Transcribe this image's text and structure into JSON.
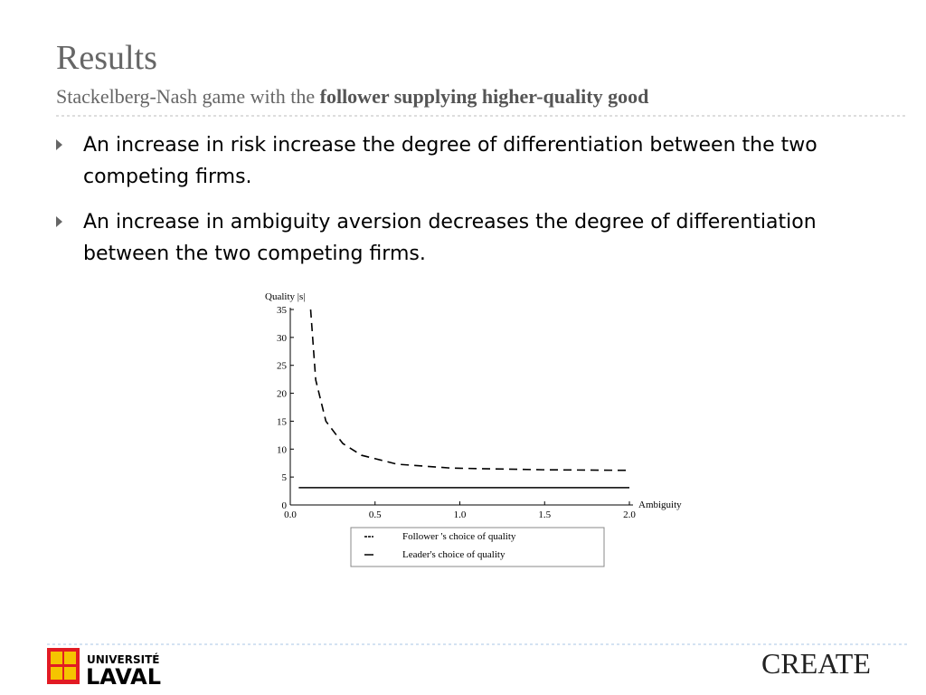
{
  "slide": {
    "title": "Results",
    "subtitle": "Stackelberg-Nash game with the",
    "subtitle_emphasis": "follower supplying higher-quality good",
    "bullets": [
      "An increase in risk increase the degree of differentiation between the two competing firms.",
      "An increase in ambiguity aversion decreases the degree of differentiation between the two competing firms."
    ],
    "logo_left_top": "UNIVERSITÉ",
    "logo_left_bottom": "LAVAL",
    "logo_right": "CREATE"
  },
  "chart_data": {
    "type": "line",
    "x_label": "Ambiguity",
    "y_label": "Quality |s|",
    "xlim": [
      0,
      2
    ],
    "ylim": [
      0,
      35
    ],
    "xticks": [
      {
        "value": 0,
        "label": "0.0"
      },
      {
        "value": 0.5,
        "label": "0.5"
      },
      {
        "value": 1,
        "label": "1.0"
      },
      {
        "value": 1.5,
        "label": "1.5"
      },
      {
        "value": 2,
        "label": "2.0"
      }
    ],
    "yticks": [
      0,
      5,
      10,
      15,
      20,
      25,
      30,
      35
    ],
    "grid": false,
    "legend": "bottom",
    "series": [
      {
        "name": "Follower 's choice of quality",
        "color": "#000000",
        "linestyle": "dashed",
        "x": [
          0.12,
          0.15,
          0.21,
          0.31,
          0.42,
          0.63,
          0.95,
          1.49,
          2.0
        ],
        "values": [
          35,
          22.4,
          15,
          11,
          8.9,
          7.3,
          6.6,
          6.3,
          6.2
        ]
      },
      {
        "name": "Leader's choice of quality",
        "color": "#000000",
        "linestyle": "solid",
        "x": [
          0.05,
          2.0
        ],
        "values": [
          3.1,
          3.1
        ]
      }
    ]
  }
}
